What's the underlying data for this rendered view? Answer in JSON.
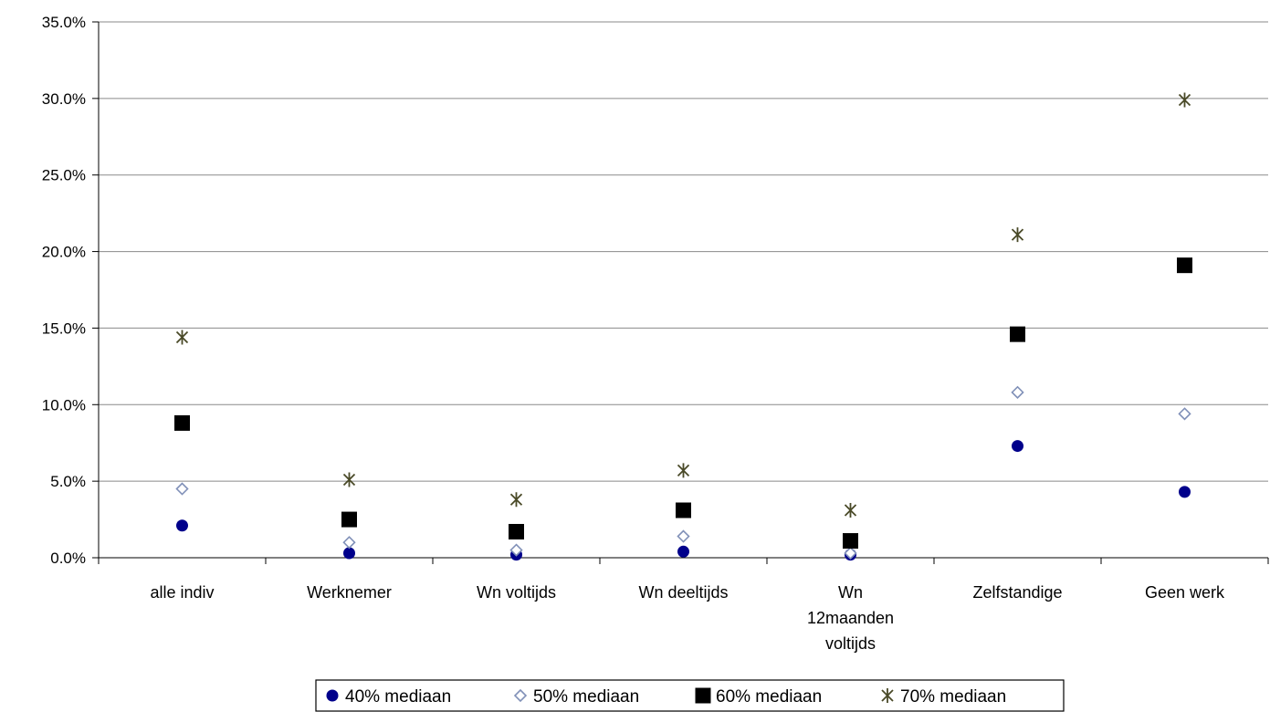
{
  "chart_data": {
    "type": "scatter",
    "title": "",
    "xlabel": "",
    "ylabel": "",
    "ylim": [
      0,
      35
    ],
    "yticks": [
      "0.0%",
      "5.0%",
      "10.0%",
      "15.0%",
      "20.0%",
      "25.0%",
      "30.0%",
      "35.0%"
    ],
    "categories": [
      [
        "alle indiv"
      ],
      [
        "Werknemer"
      ],
      [
        "Wn voltijds"
      ],
      [
        "Wn deeltijds"
      ],
      [
        "Wn",
        "12maanden",
        "voltijds"
      ],
      [
        "Zelfstandige"
      ],
      [
        "Geen werk"
      ]
    ],
    "grid": true,
    "legend_position": "bottom",
    "series": [
      {
        "name": "40% mediaan",
        "marker": "circle",
        "color": "#00008b",
        "values": [
          2.1,
          0.3,
          0.2,
          0.4,
          0.2,
          7.3,
          4.3
        ]
      },
      {
        "name": "50% mediaan",
        "marker": "diamond",
        "color": "#8090b8",
        "values": [
          4.5,
          1.0,
          0.5,
          1.4,
          0.3,
          10.8,
          9.4
        ]
      },
      {
        "name": "60% mediaan",
        "marker": "square",
        "color": "#000000",
        "values": [
          8.8,
          2.5,
          1.7,
          3.1,
          1.1,
          14.6,
          19.1
        ]
      },
      {
        "name": "70% mediaan",
        "marker": "asterisk",
        "color": "#4a4a28",
        "values": [
          14.4,
          5.1,
          3.8,
          5.7,
          3.1,
          21.1,
          29.9
        ]
      }
    ]
  }
}
